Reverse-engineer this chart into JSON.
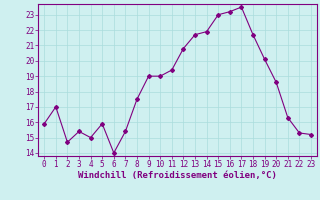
{
  "x": [
    0,
    1,
    2,
    3,
    4,
    5,
    6,
    7,
    8,
    9,
    10,
    11,
    12,
    13,
    14,
    15,
    16,
    17,
    18,
    19,
    20,
    21,
    22,
    23
  ],
  "y": [
    15.9,
    17.0,
    14.7,
    15.4,
    15.0,
    15.9,
    14.0,
    15.4,
    17.5,
    19.0,
    19.0,
    19.4,
    20.8,
    21.7,
    21.9,
    23.0,
    23.2,
    23.5,
    21.7,
    20.1,
    18.6,
    16.3,
    15.3,
    15.2
  ],
  "line_color": "#800080",
  "marker": "D",
  "marker_size": 2,
  "bg_color": "#cff0f0",
  "grid_color": "#aadddd",
  "xlabel": "Windchill (Refroidissement éolien,°C)",
  "xlabel_color": "#800080",
  "ylim": [
    13.8,
    23.7
  ],
  "yticks": [
    14,
    15,
    16,
    17,
    18,
    19,
    20,
    21,
    22,
    23
  ],
  "xticks": [
    0,
    1,
    2,
    3,
    4,
    5,
    6,
    7,
    8,
    9,
    10,
    11,
    12,
    13,
    14,
    15,
    16,
    17,
    18,
    19,
    20,
    21,
    22,
    23
  ],
  "tick_fontsize": 5.5,
  "xlabel_fontsize": 6.5,
  "spine_color": "#800080",
  "tick_color": "#800080"
}
